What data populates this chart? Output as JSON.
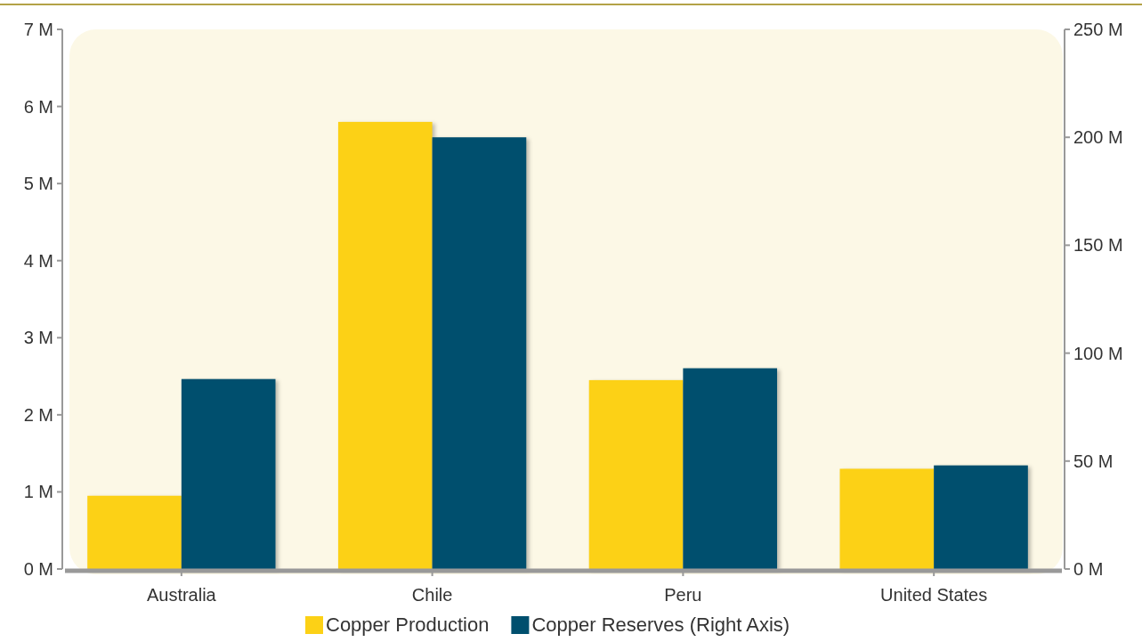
{
  "chart_data": {
    "type": "bar",
    "categories": [
      "Australia",
      "Chile",
      "Peru",
      "United States"
    ],
    "series": [
      {
        "name": "Copper Production",
        "color": "#fcd116",
        "values": [
          0.95,
          5.8,
          2.45,
          1.3
        ]
      },
      {
        "name": "Copper Reserves (Right Axis)",
        "color": "#004f6e",
        "values": [
          88,
          200,
          93,
          48
        ],
        "axis": "y2"
      }
    ],
    "ylim": [
      0,
      7
    ],
    "yticks": [
      {
        "value": 0,
        "label": "0 M"
      },
      {
        "value": 1,
        "label": "1 M"
      },
      {
        "value": 2,
        "label": "2 M"
      },
      {
        "value": 3,
        "label": "3 M"
      },
      {
        "value": 4,
        "label": "4 M"
      },
      {
        "value": 5,
        "label": "5 M"
      },
      {
        "value": 6,
        "label": "6 M"
      },
      {
        "value": 7,
        "label": "7 M"
      }
    ],
    "y2lim": [
      0,
      250
    ],
    "y2ticks": [
      {
        "value": 0,
        "label": "0 M"
      },
      {
        "value": 50,
        "label": "50 M"
      },
      {
        "value": 100,
        "label": "100 M"
      },
      {
        "value": 150,
        "label": "150 M"
      },
      {
        "value": 200,
        "label": "200 M"
      },
      {
        "value": 250,
        "label": "250 M"
      }
    ],
    "grid": false,
    "legend": "bottom"
  }
}
